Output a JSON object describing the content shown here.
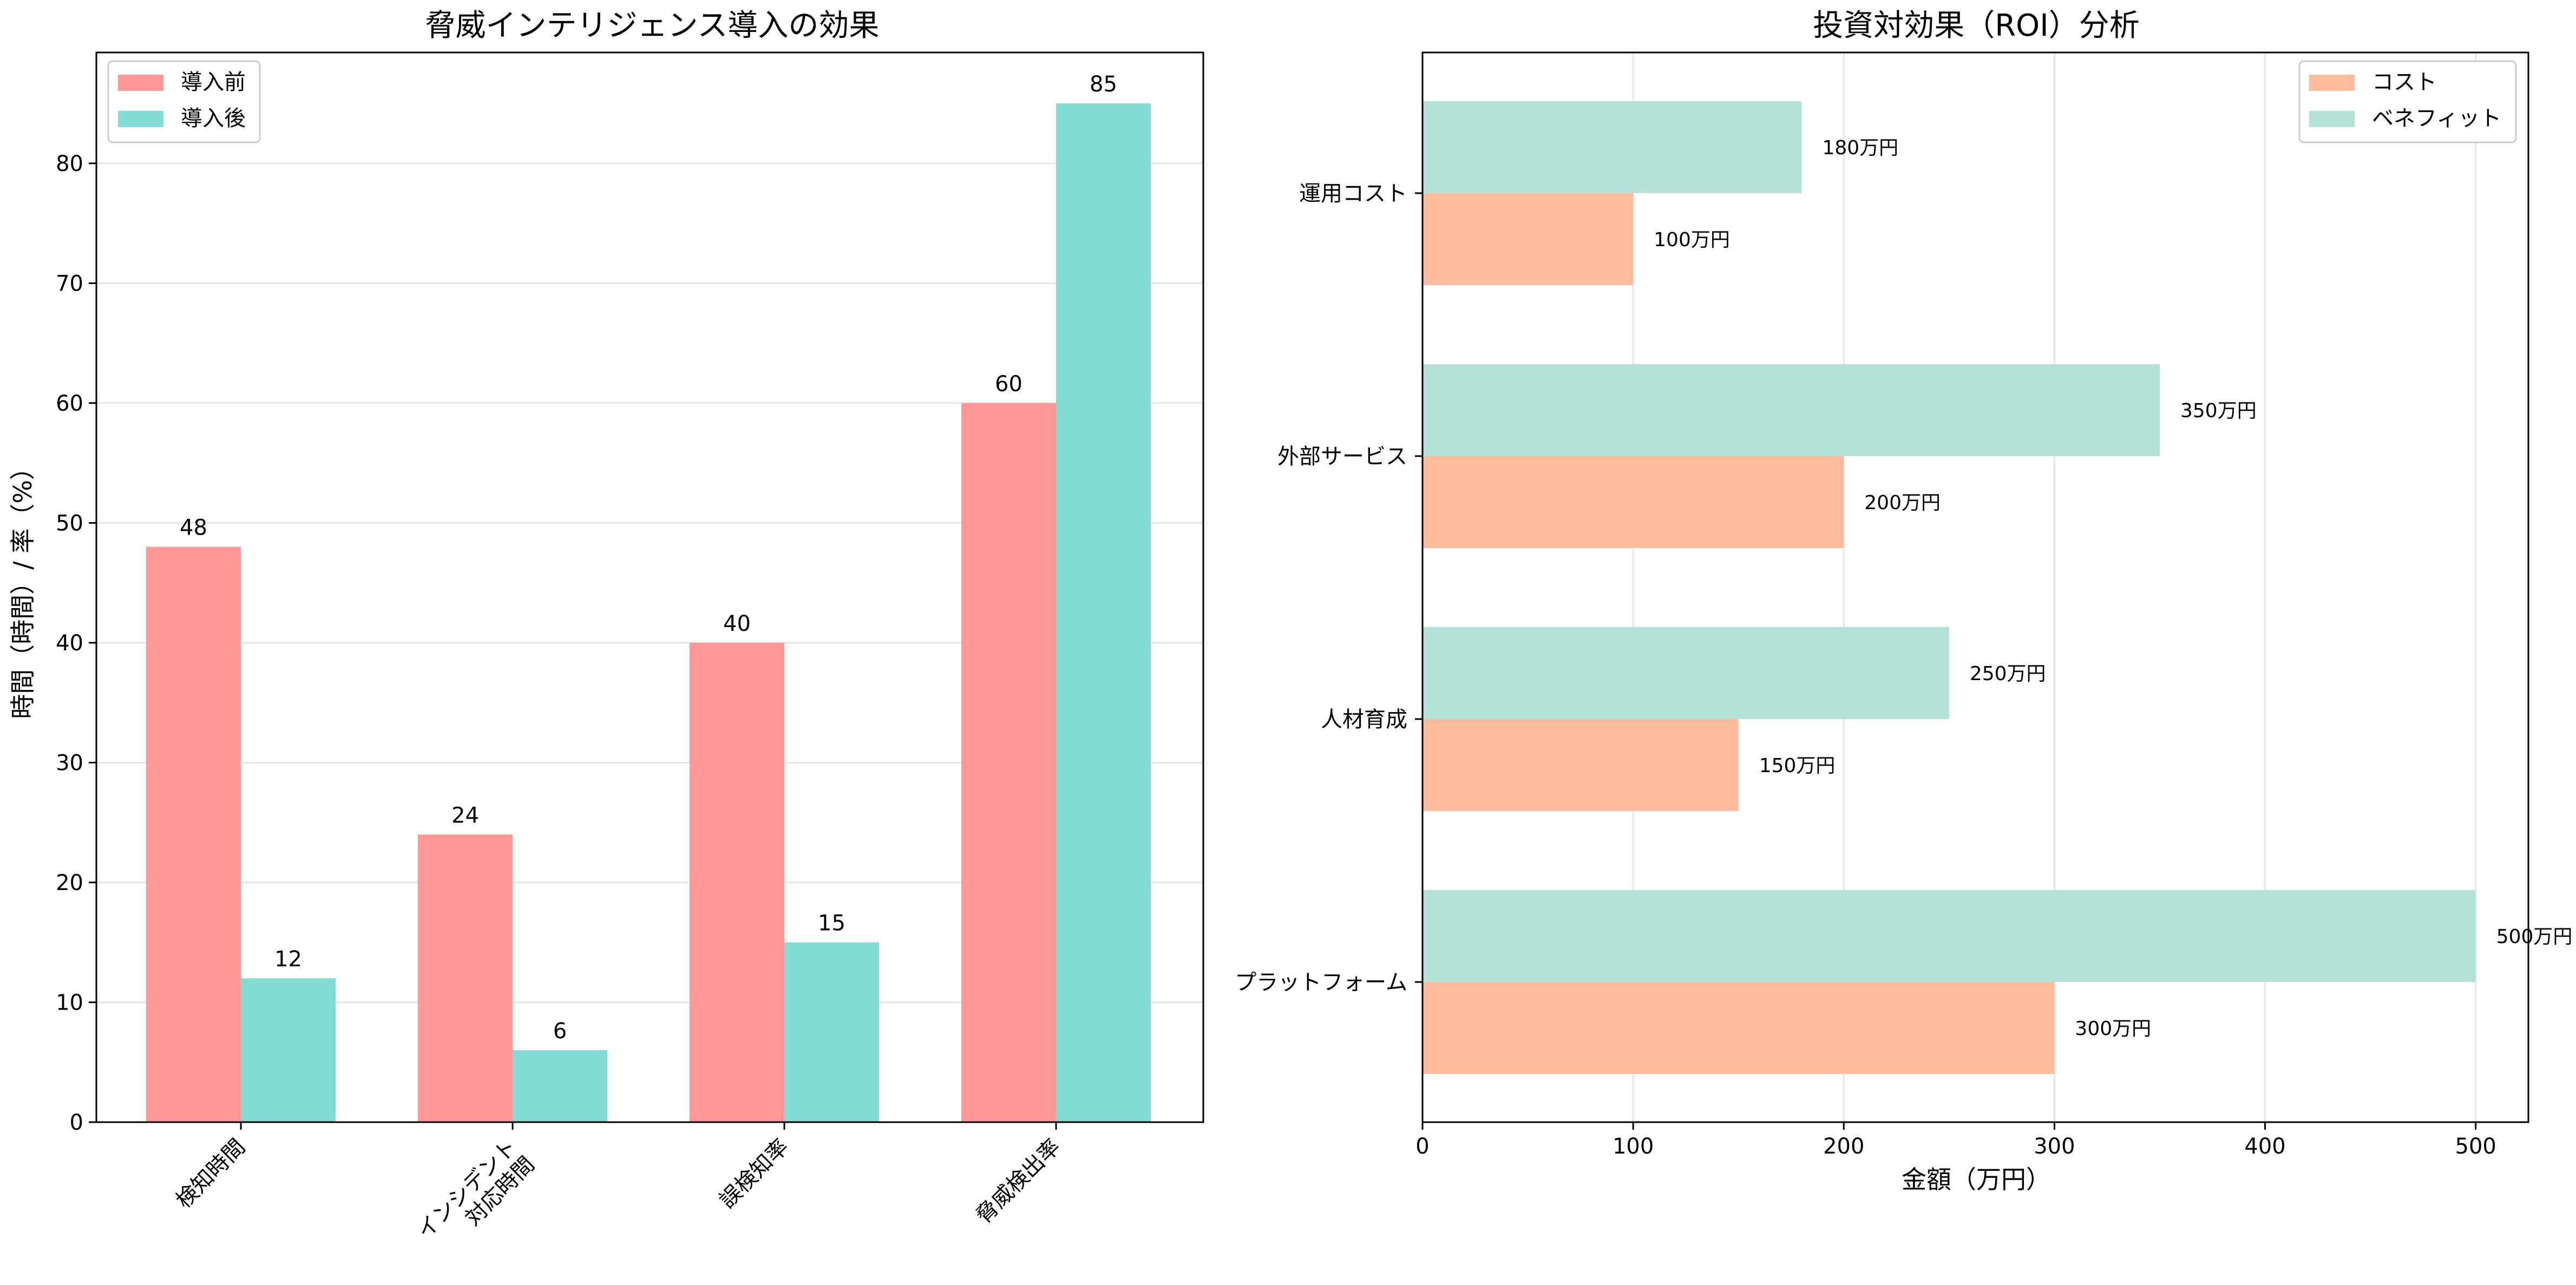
{
  "colors": {
    "before": "#ff9896",
    "after": "#82dbd4",
    "cost": "#ffbb9e",
    "benefit": "#b4e2d8",
    "grid": "#e6e6e6"
  },
  "chart_data": [
    {
      "type": "bar",
      "title": "脅威インテリジェンス導入の効果",
      "xlabel": "",
      "ylabel": "時間（時間）/ 率（%）",
      "categories": [
        "検知時間",
        "インシデント\n対応時間",
        "誤検知率",
        "脅威検出率"
      ],
      "series": [
        {
          "name": "導入前",
          "values": [
            48,
            24,
            40,
            60
          ]
        },
        {
          "name": "導入後",
          "values": [
            12,
            6,
            15,
            85
          ]
        }
      ],
      "ylim": [
        0,
        89.25
      ],
      "yticks": [
        0,
        10,
        20,
        30,
        40,
        50,
        60,
        70,
        80
      ],
      "grid": "y",
      "legend": "top-left"
    },
    {
      "type": "bar",
      "orientation": "horizontal",
      "title": "投資対効果（ROI）分析",
      "xlabel": "金額（万円）",
      "ylabel": "",
      "categories": [
        "プラットフォーム",
        "人材育成",
        "外部サービス",
        "運用コスト"
      ],
      "series": [
        {
          "name": "コスト",
          "values": [
            300,
            150,
            200,
            100
          ],
          "labels": [
            "300万円",
            "150万円",
            "200万円",
            "100万円"
          ]
        },
        {
          "name": "ベネフィット",
          "values": [
            500,
            250,
            350,
            180
          ],
          "labels": [
            "500万円",
            "250万円",
            "350万円",
            "180万円"
          ]
        }
      ],
      "xlim": [
        0,
        525
      ],
      "xticks": [
        0,
        100,
        200,
        300,
        400,
        500
      ],
      "grid": "x",
      "legend": "top-right"
    }
  ]
}
